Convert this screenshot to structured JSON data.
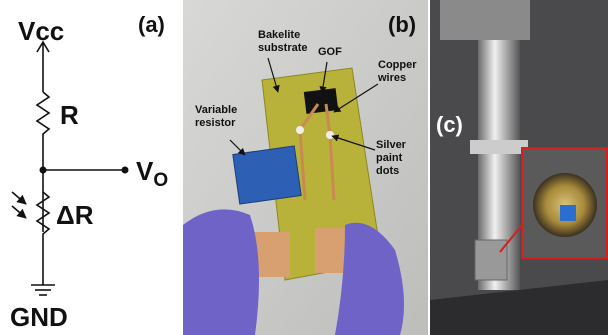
{
  "panel_a": {
    "label": "(a)",
    "vcc": "Vcc",
    "r": "R",
    "vo": "V",
    "vo_sub": "O",
    "delta_r": "ΔR",
    "gnd": "GND"
  },
  "panel_b": {
    "label": "(b)",
    "annotations": [
      {
        "lines": [
          "Bakelite",
          "substrate"
        ]
      },
      {
        "lines": [
          "GOF"
        ]
      },
      {
        "lines": [
          "Copper",
          "wires"
        ]
      },
      {
        "lines": [
          "Variable",
          "resistor"
        ]
      },
      {
        "lines": [
          "Silver",
          "paint",
          "dots"
        ]
      }
    ]
  },
  "panel_c": {
    "label": "(c)"
  }
}
